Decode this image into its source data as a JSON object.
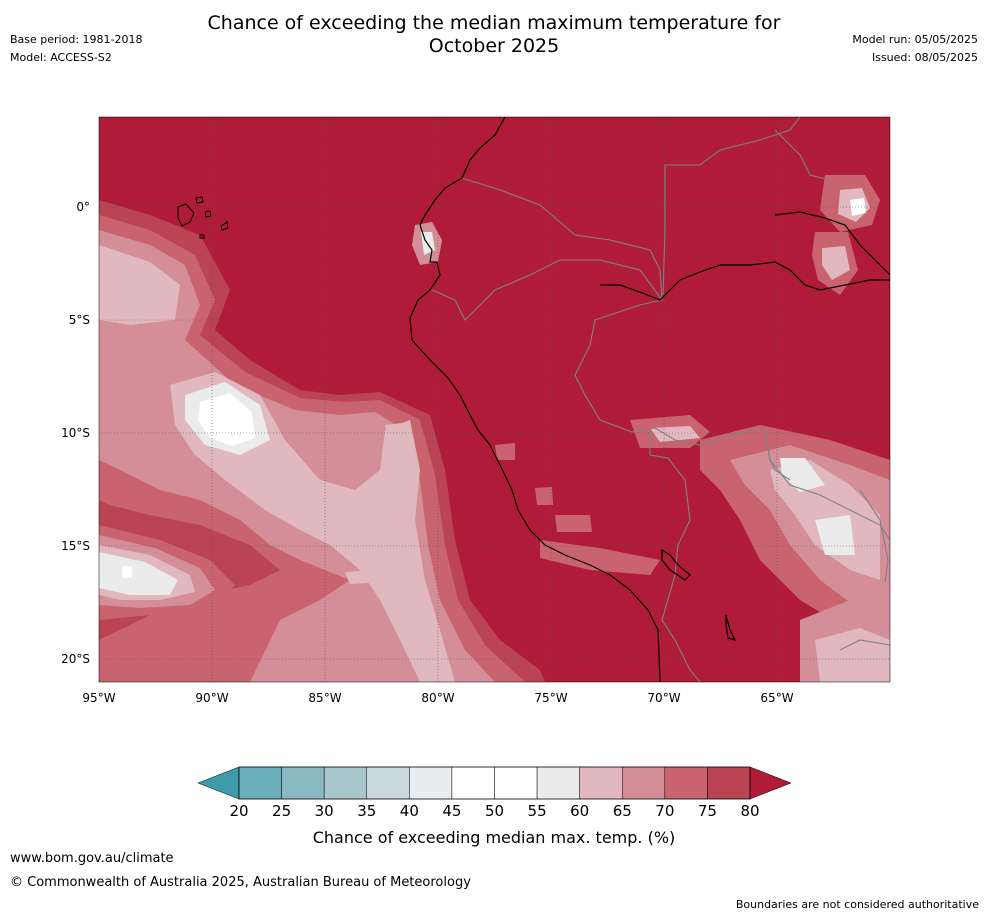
{
  "title": {
    "line1": "Chance of exceeding the median maximum temperature for",
    "line2": "October 2025"
  },
  "meta_left": {
    "base_period": "Base period: 1981-2018",
    "model": "Model: ACCESS-S2"
  },
  "meta_right": {
    "model_run": "Model run: 05/05/2025",
    "issued": "Issued: 08/05/2025"
  },
  "map": {
    "lat_labels": [
      "0°",
      "5°S",
      "10°S",
      "15°S",
      "20°S"
    ],
    "lon_labels": [
      "95°W",
      "90°W",
      "85°W",
      "80°W",
      "75°W",
      "70°W",
      "65°W"
    ],
    "dominant_category": "80+",
    "coastline_color": "#000000",
    "border_color": "#808080",
    "gridlines": true
  },
  "colorbar": {
    "ticks": [
      "20",
      "25",
      "30",
      "35",
      "40",
      "45",
      "50",
      "55",
      "60",
      "65",
      "70",
      "75",
      "80"
    ],
    "colors": [
      "#3f9aaa",
      "#6aadbb",
      "#8ab9c3",
      "#a8c7cc",
      "#c9d8db",
      "#e8eef0",
      "#ffffff",
      "#ffffff",
      "#ebebeb",
      "#e0b8be",
      "#d48e97",
      "#c9646f",
      "#bb4453",
      "#b01c37"
    ],
    "label": "Chance of exceeding median max. temp. (%)"
  },
  "footer": {
    "url": "www.bom.gov.au/climate",
    "copyright": "© Commonwealth of Australia 2025, Australian Bureau of Meteorology",
    "note": "Boundaries are not considered authoritative"
  }
}
